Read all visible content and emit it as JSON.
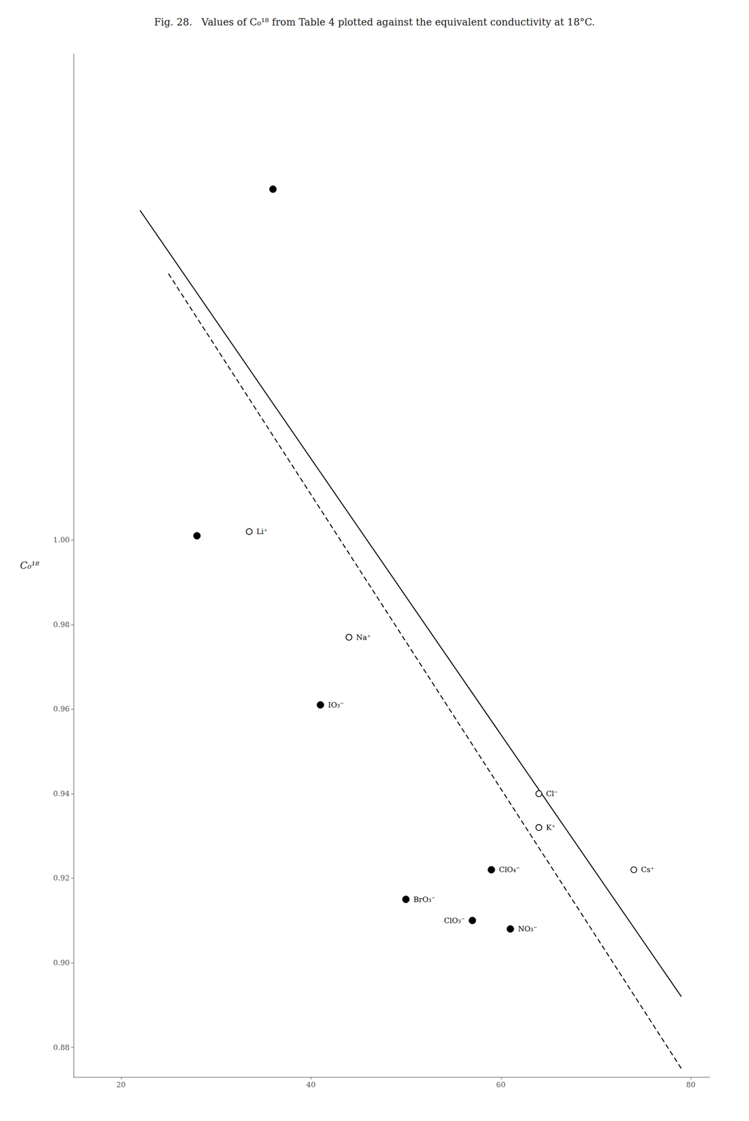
{
  "chart_data": {
    "type": "scatter",
    "title": "Fig. 28.   Values of C₀¹⁸ from Table 4 plotted against the equivalent conductivity at 18°C.",
    "ylabel": "C₀¹⁸",
    "xlim": [
      15,
      82
    ],
    "ylim": [
      0.873,
      1.115
    ],
    "xticks": [
      20,
      40,
      60,
      80
    ],
    "yticks": [
      {
        "value": 0.88,
        "label": "0.88"
      },
      {
        "value": 0.9,
        "label": "0.90"
      },
      {
        "value": 0.92,
        "label": "0.92"
      },
      {
        "value": 0.94,
        "label": "0.94"
      },
      {
        "value": 0.96,
        "label": "0.96"
      },
      {
        "value": 0.98,
        "label": "0.98"
      },
      {
        "value": 1.0,
        "label": "1.00"
      }
    ],
    "grid": false,
    "series": [
      {
        "type": "line",
        "line_style": "solid",
        "color": "#000000",
        "x": [
          22,
          79
        ],
        "values": [
          1.078,
          0.892
        ]
      },
      {
        "type": "line",
        "line_style": "dashed",
        "color": "#000000",
        "x": [
          25,
          79
        ],
        "values": [
          1.063,
          0.875
        ]
      },
      {
        "type": "scatter",
        "marker": "open_circle",
        "color": "#000000",
        "x": [
          33.5,
          44,
          64,
          64,
          74
        ],
        "values": [
          1.002,
          0.977,
          0.94,
          0.932,
          0.922
        ],
        "labels": [
          "Li⁺",
          "Na⁺",
          "Cl⁻",
          "K⁺",
          "Cs⁺"
        ]
      },
      {
        "type": "scatter",
        "marker": "circle",
        "color": "#000000",
        "x": [
          36,
          28,
          41,
          50,
          59,
          57,
          61
        ],
        "values": [
          1.083,
          1.001,
          0.961,
          0.915,
          0.922,
          0.91,
          0.908
        ],
        "labels": [
          null,
          null,
          "IO₃⁻",
          "BrO₃⁻",
          "ClO₄⁻",
          "ClO₃⁻",
          "NO₃⁻"
        ]
      }
    ]
  }
}
